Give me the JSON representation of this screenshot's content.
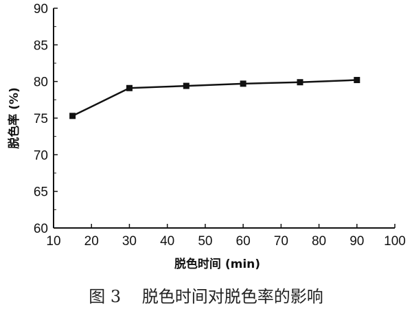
{
  "chart_data": {
    "type": "line",
    "xlabel": "脱色时间 (min)",
    "ylabel": "脱色率 (%)",
    "xlim": [
      10,
      100
    ],
    "ylim": [
      60,
      90
    ],
    "xticks": [
      10,
      20,
      30,
      40,
      50,
      60,
      70,
      80,
      90,
      100
    ],
    "yticks": [
      60,
      65,
      70,
      75,
      80,
      85,
      90
    ],
    "grid": false,
    "marker": "square",
    "color": "#111111",
    "x": [
      15,
      30,
      45,
      60,
      75,
      90
    ],
    "values": [
      75.3,
      79.1,
      79.4,
      79.7,
      79.9,
      80.2
    ]
  },
  "caption": "图 3    脱色时间对脱色率的影响"
}
